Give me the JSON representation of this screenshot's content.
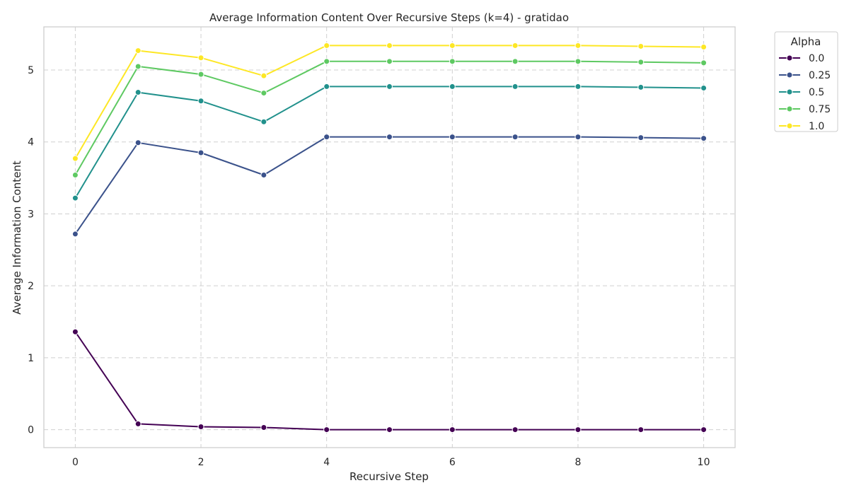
{
  "chart_data": {
    "type": "line",
    "title": "Average Information Content Over Recursive Steps (k=4) - gratidao",
    "xlabel": "Recursive Step",
    "ylabel": "Average Information Content",
    "xlim": [
      -0.5,
      10.5
    ],
    "ylim": [
      -0.25,
      5.6
    ],
    "xticks": [
      0,
      2,
      4,
      6,
      8,
      10
    ],
    "yticks": [
      0,
      1,
      2,
      3,
      4,
      5
    ],
    "grid": true,
    "legend": {
      "title": "Alpha",
      "placement": "outside-top-right"
    },
    "x": [
      0,
      1,
      2,
      3,
      4,
      5,
      6,
      7,
      8,
      9,
      10
    ],
    "series": [
      {
        "name": "0.0",
        "color": "#440154",
        "values": [
          1.36,
          0.08,
          0.04,
          0.03,
          0.0,
          0.0,
          0.0,
          0.0,
          0.0,
          0.0,
          0.0
        ]
      },
      {
        "name": "0.25",
        "color": "#3b528b",
        "values": [
          2.72,
          3.99,
          3.85,
          3.54,
          4.07,
          4.07,
          4.07,
          4.07,
          4.07,
          4.06,
          4.05
        ]
      },
      {
        "name": "0.5",
        "color": "#21918c",
        "values": [
          3.22,
          4.69,
          4.57,
          4.28,
          4.77,
          4.77,
          4.77,
          4.77,
          4.77,
          4.76,
          4.75
        ]
      },
      {
        "name": "0.75",
        "color": "#5ec962",
        "values": [
          3.54,
          5.05,
          4.94,
          4.68,
          5.12,
          5.12,
          5.12,
          5.12,
          5.12,
          5.11,
          5.1
        ]
      },
      {
        "name": "1.0",
        "color": "#fde725",
        "values": [
          3.77,
          5.27,
          5.17,
          4.92,
          5.34,
          5.34,
          5.34,
          5.34,
          5.34,
          5.33,
          5.32
        ]
      }
    ]
  }
}
